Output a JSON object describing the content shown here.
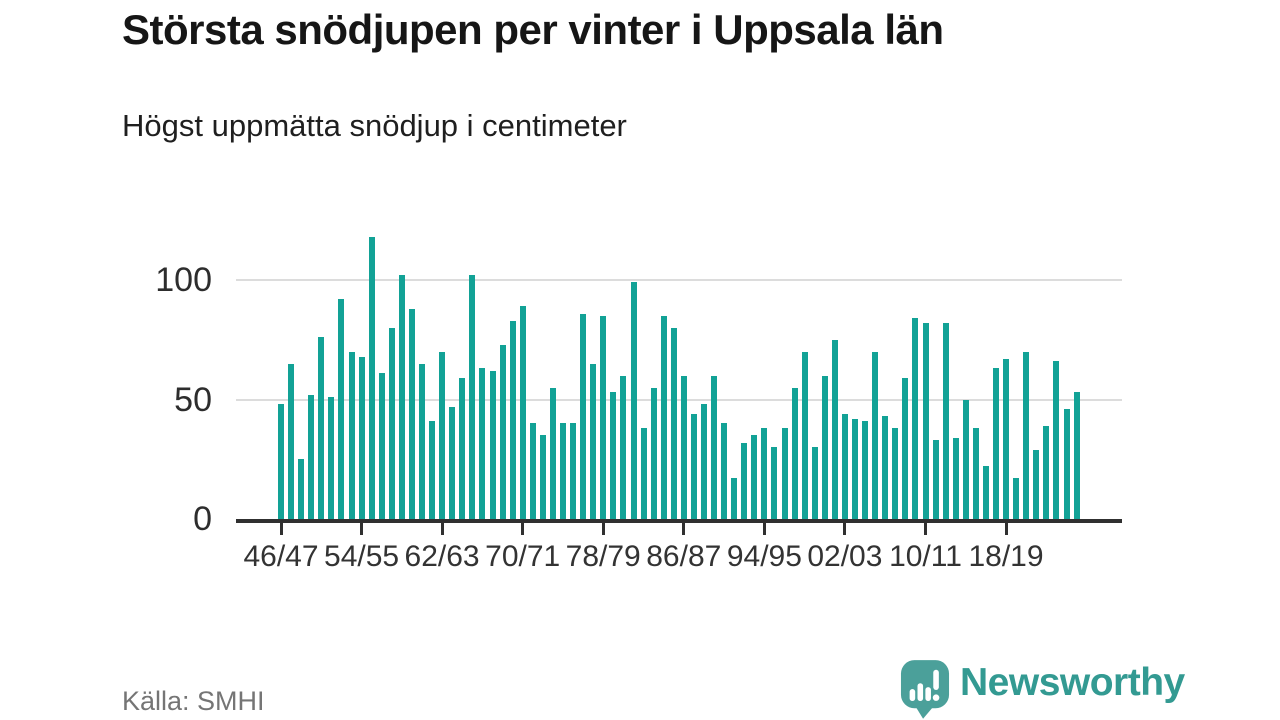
{
  "header": {
    "title": "Största snödjupen per vinter i Uppsala län",
    "subtitle": "Högst uppmätta snödjup i centimeter"
  },
  "footer": {
    "source": "Källa: SMHI",
    "brand": "Newsworthy"
  },
  "chart_data": {
    "type": "bar",
    "title": "Största snödjupen per vinter i Uppsala län",
    "subtitle": "Högst uppmätta snödjup i centimeter",
    "unit": "cm",
    "categories": [
      "46/47",
      "47/48",
      "48/49",
      "49/50",
      "50/51",
      "51/52",
      "52/53",
      "53/54",
      "54/55",
      "55/56",
      "56/57",
      "57/58",
      "58/59",
      "59/60",
      "60/61",
      "61/62",
      "62/63",
      "63/64",
      "64/65",
      "65/66",
      "66/67",
      "67/68",
      "68/69",
      "69/70",
      "70/71",
      "71/72",
      "72/73",
      "73/74",
      "74/75",
      "75/76",
      "76/77",
      "77/78",
      "78/79",
      "79/80",
      "80/81",
      "81/82",
      "82/83",
      "83/84",
      "84/85",
      "85/86",
      "86/87",
      "87/88",
      "88/89",
      "89/90",
      "90/91",
      "91/92",
      "92/93",
      "93/94",
      "94/95",
      "95/96",
      "96/97",
      "97/98",
      "98/99",
      "99/00",
      "00/01",
      "01/02",
      "02/03",
      "03/04",
      "04/05",
      "05/06",
      "06/07",
      "07/08",
      "08/09",
      "09/10",
      "10/11",
      "11/12",
      "12/13",
      "13/14",
      "14/15",
      "15/16",
      "16/17",
      "17/18",
      "18/19",
      "19/20",
      "20/21",
      "21/22",
      "22/23",
      "23/24",
      "24/25",
      "25/26"
    ],
    "values": [
      48,
      65,
      25,
      52,
      76,
      51,
      92,
      70,
      68,
      118,
      61,
      80,
      102,
      88,
      65,
      41,
      70,
      47,
      59,
      102,
      63,
      62,
      73,
      83,
      89,
      40,
      35,
      55,
      40,
      40,
      86,
      65,
      85,
      53,
      60,
      99,
      38,
      55,
      85,
      80,
      60,
      44,
      48,
      60,
      40,
      17,
      32,
      35,
      38,
      30,
      38,
      55,
      70,
      30,
      60,
      75,
      44,
      42,
      41,
      70,
      43,
      38,
      59,
      84,
      82,
      33,
      82,
      34,
      50,
      38,
      22,
      63,
      67,
      17,
      70,
      29,
      39,
      66,
      46,
      53
    ],
    "x_tick_labels": [
      "46/47",
      "54/55",
      "62/63",
      "70/71",
      "78/79",
      "86/87",
      "94/95",
      "02/03",
      "10/11",
      "18/19"
    ],
    "x_tick_every": 8,
    "y_ticks": [
      0,
      50,
      100
    ],
    "ylim": [
      0,
      120
    ],
    "grid": "horizontal",
    "legend": "none",
    "bar_color": "#12a296",
    "axis_color": "#303030",
    "grid_color": "#dcdcdc",
    "label_color": "#333333",
    "source": "Källa: SMHI"
  },
  "logo": {
    "icon": "newsworthy-speech-bubble-bars-icon",
    "text": "Newsworthy",
    "icon_color": "#4ba09a",
    "text_color": "#339a92"
  }
}
